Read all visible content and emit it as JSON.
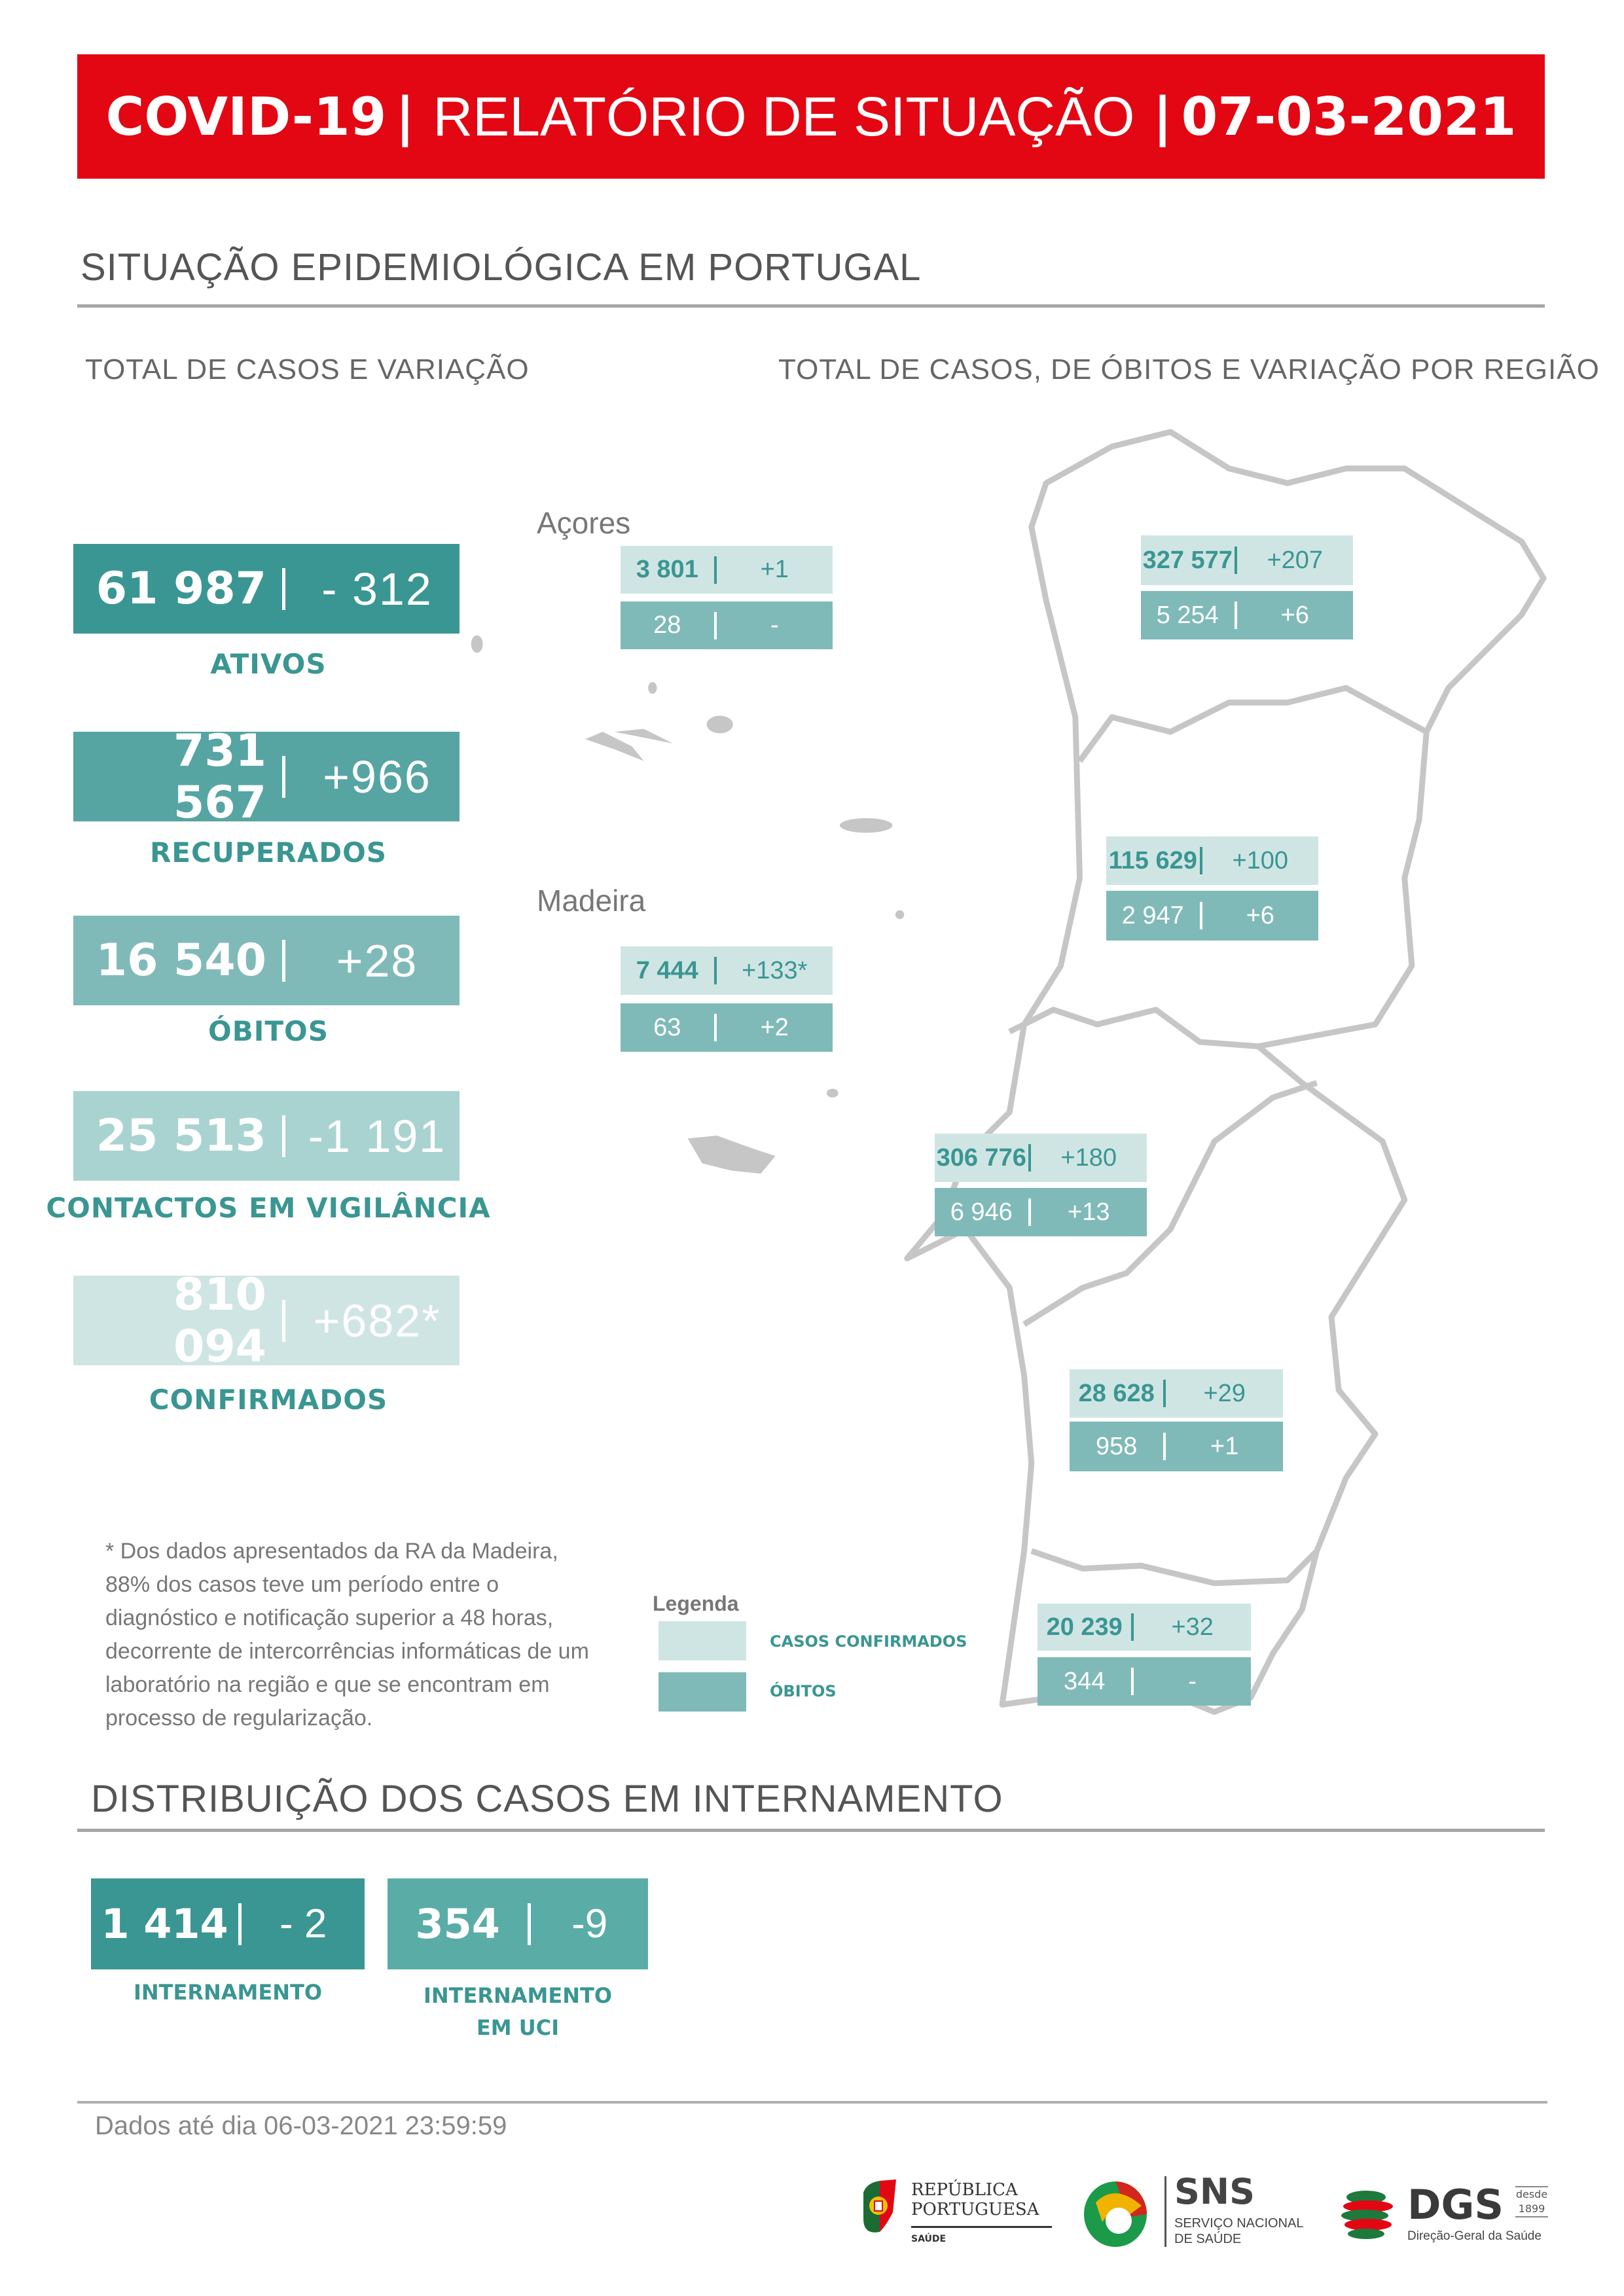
{
  "header": {
    "title_left": "COVID-19",
    "separator": "|",
    "title_mid": "RELATÓRIO DE SITUAÇÃO",
    "date": "07-03-2021"
  },
  "section1": {
    "title": "SITUAÇÃO EPIDEMIOLÓGICA EM PORTUGAL",
    "sub_left": "TOTAL DE CASOS E VARIAÇÃO",
    "sub_right": "TOTAL DE CASOS, DE ÓBITOS E VARIAÇÃO POR REGIÃO"
  },
  "stats": [
    {
      "value": "61 987",
      "change": "- 312",
      "label": "ATIVOS",
      "color": "#3a9692"
    },
    {
      "value": "731 567",
      "change": "+966",
      "label": "RECUPERADOS",
      "color": "#56a5a3"
    },
    {
      "value": "16 540",
      "change": "+28",
      "label": "ÓBITOS",
      "color": "#7fbab8"
    },
    {
      "value": "25 513",
      "change": "-1 191",
      "label": "CONTACTOS EM VIGILÂNCIA",
      "color": "#a9d3d1"
    },
    {
      "value": "810 094",
      "change": "+682*",
      "label": "CONFIRMADOS",
      "color": "#cfe5e4"
    }
  ],
  "regions": {
    "acores": {
      "label": "Açores",
      "cases": "3 801",
      "cases_change": "+1",
      "deaths": "28",
      "deaths_change": "-"
    },
    "madeira": {
      "label": "Madeira",
      "cases": "7 444",
      "cases_change": "+133*",
      "deaths": "63",
      "deaths_change": "+2"
    },
    "norte": {
      "cases": "327 577",
      "cases_change": "+207",
      "deaths": "5 254",
      "deaths_change": "+6"
    },
    "centro": {
      "cases": "115 629",
      "cases_change": "+100",
      "deaths": "2 947",
      "deaths_change": "+6"
    },
    "lvt": {
      "cases": "306 776",
      "cases_change": "+180",
      "deaths": "6 946",
      "deaths_change": "+13"
    },
    "alentejo": {
      "cases": "28 628",
      "cases_change": "+29",
      "deaths": "958",
      "deaths_change": "+1"
    },
    "algarve": {
      "cases": "20 239",
      "cases_change": "+32",
      "deaths": "344",
      "deaths_change": "-"
    }
  },
  "footnote": "* Dos dados apresentados da RA da Madeira, 88% dos casos teve um período entre o diagnóstico e notificação superior a 48 horas, decorrente de intercorrências informáticas de um laboratório na região e que se encontram em processo de regularização.",
  "legend": {
    "title": "Legenda",
    "confirmed": "CASOS CONFIRMADOS",
    "deaths": "ÓBITOS",
    "confirmed_color": "#cfe5e4",
    "deaths_color": "#7fbab8"
  },
  "section2": {
    "title": "DISTRIBUIÇÃO DOS CASOS EM INTERNAMENTO"
  },
  "hospital": [
    {
      "value": "1 414",
      "change": "- 2",
      "label": "INTERNAMENTO",
      "color": "#3a9692"
    },
    {
      "value": "354",
      "change": "-9",
      "label_line1": "INTERNAMENTO",
      "label_line2": "EM UCI",
      "color": "#5aaca7"
    }
  ],
  "footer": {
    "data_until": "Dados até dia 06-03-2021 23:59:59",
    "logos": {
      "republica_line1": "REPÚBLICA",
      "republica_line2": "PORTUGUESA",
      "republica_sub": "SAÚDE",
      "sns": "SNS",
      "sns_line1": "SERVIÇO NACIONAL",
      "sns_line2": "DE SAÚDE",
      "dgs": "DGS",
      "dgs_since1": "desde",
      "dgs_since2": "1899",
      "dgs_sub": "Direção-Geral da Saúde"
    }
  },
  "accent_red": "#e30613"
}
